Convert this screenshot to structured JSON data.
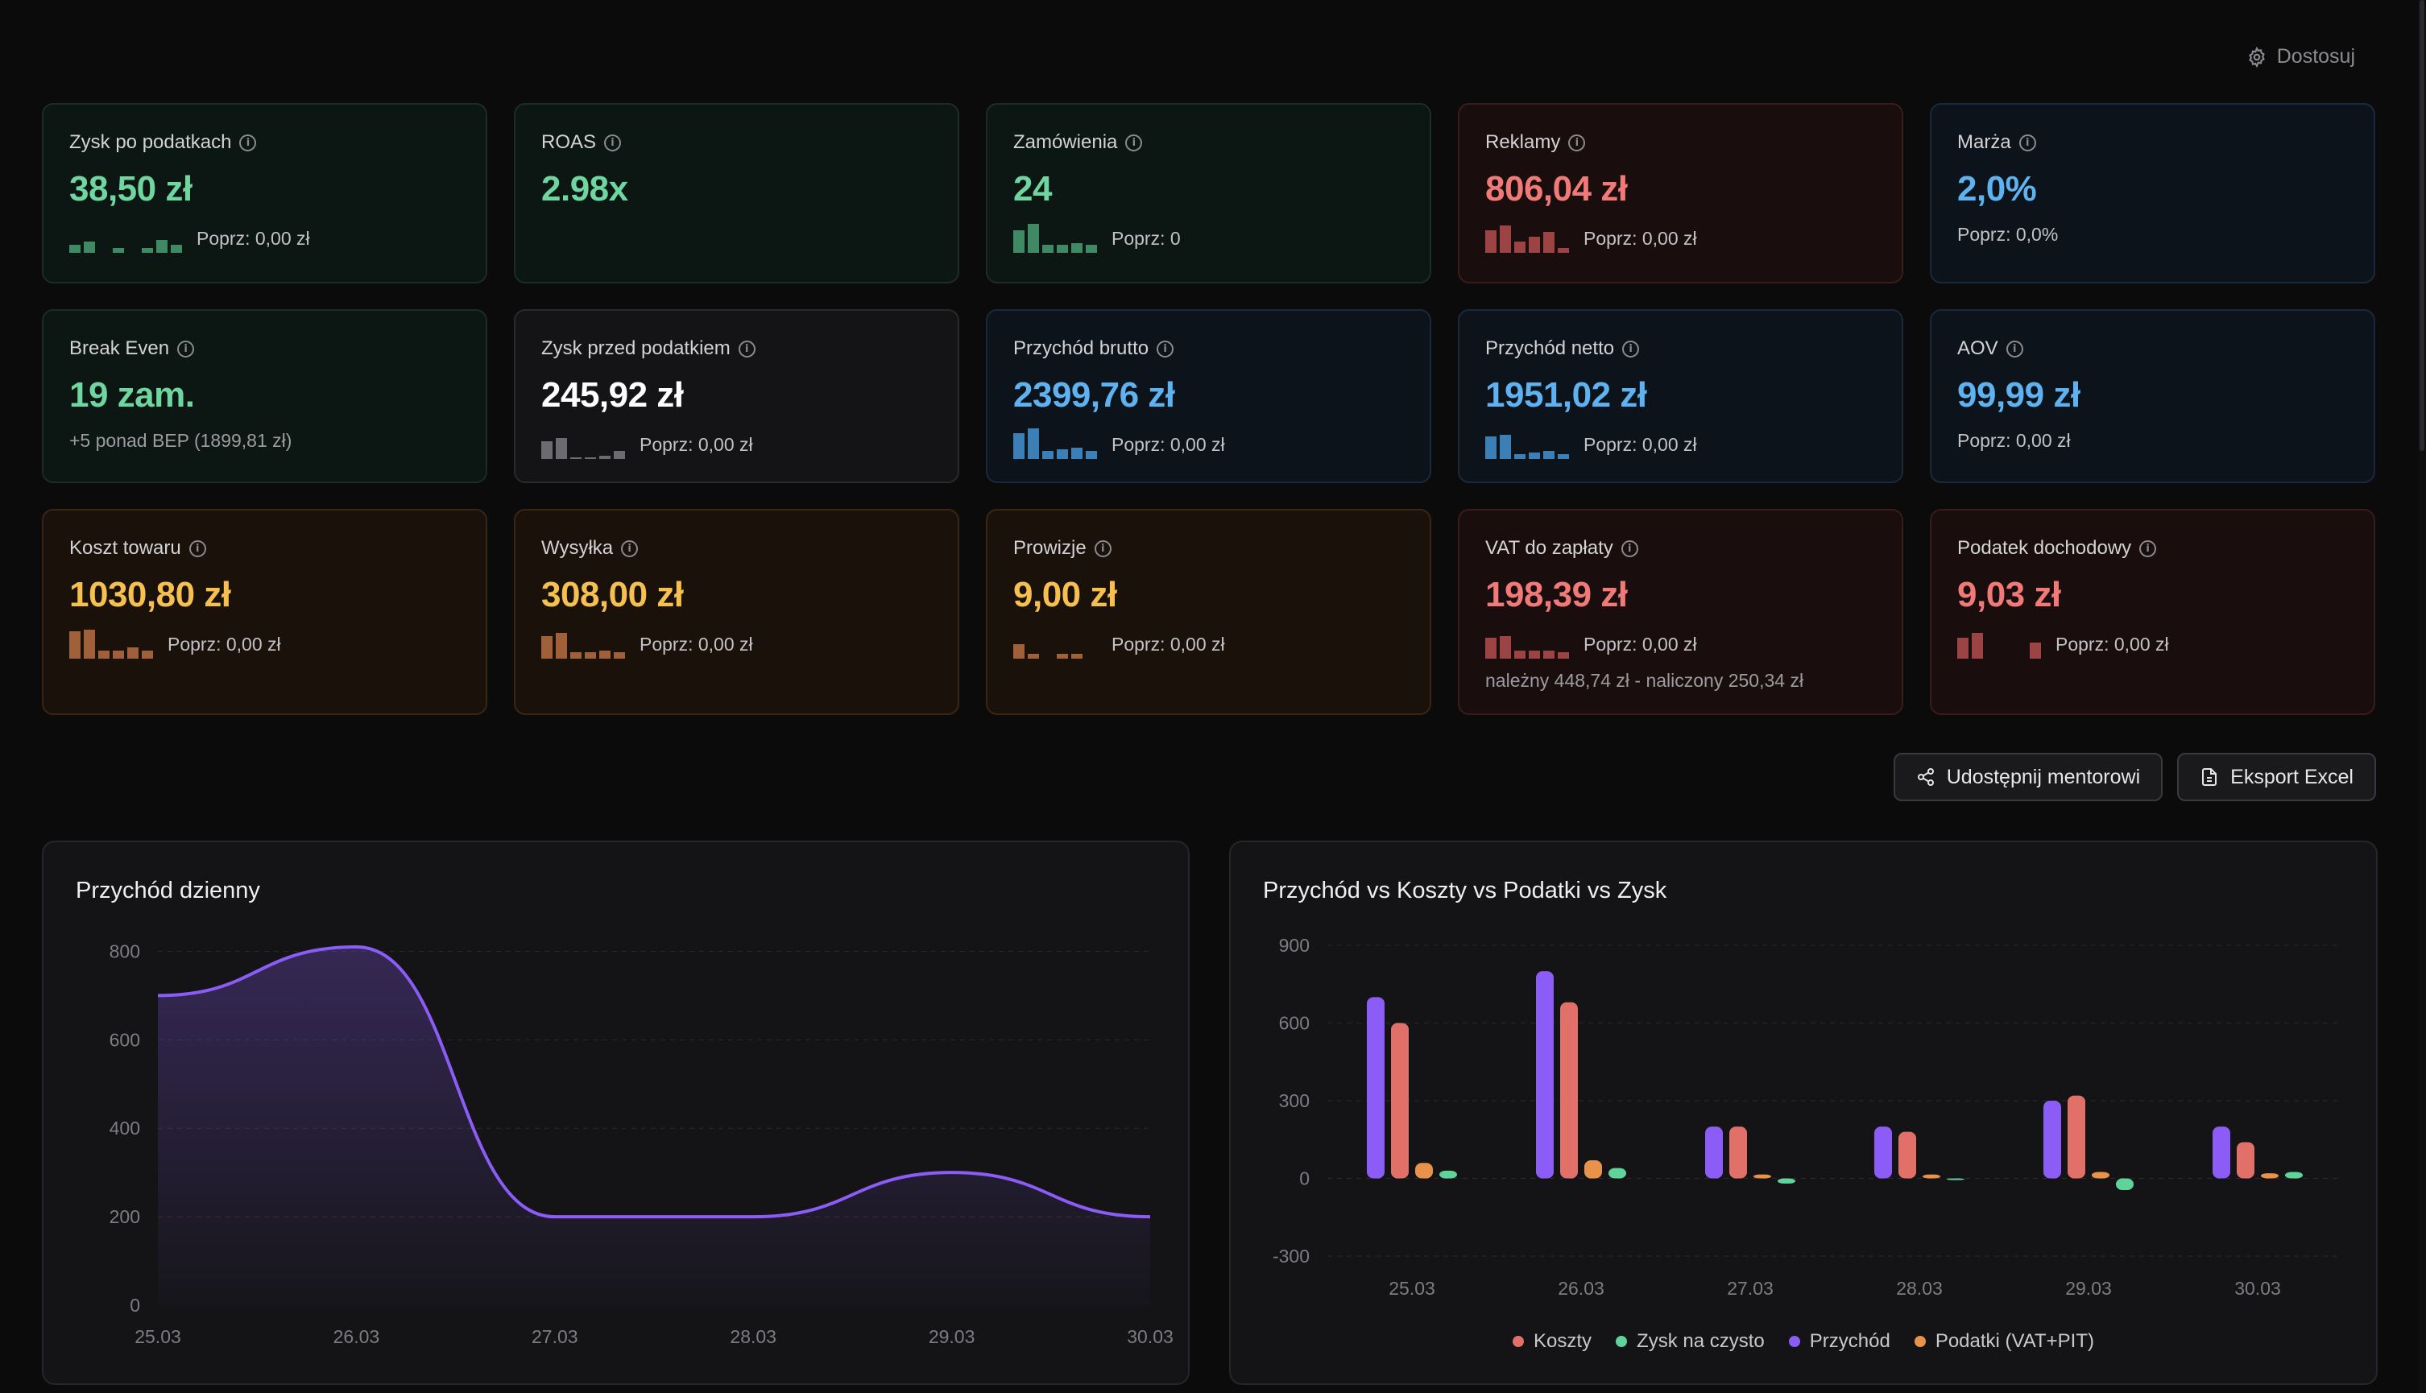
{
  "toolbar": {
    "customize_label": "Dostosuj"
  },
  "cards": [
    {
      "label": "Zysk po podatkach",
      "value": "38,50 zł",
      "prev": "Poprz: 0,00 zł",
      "tone": "green"
    },
    {
      "label": "ROAS",
      "value": "2.98x",
      "tone": "green"
    },
    {
      "label": "Zamówienia",
      "value": "24",
      "prev": "Poprz: 0",
      "tone": "green"
    },
    {
      "label": "Reklamy",
      "value": "806,04 zł",
      "prev": "Poprz: 0,00 zł",
      "tone": "red"
    },
    {
      "label": "Marża",
      "value": "2,0%",
      "prev": "Poprz: 0,0%",
      "tone": "blue"
    },
    {
      "label": "Break Even",
      "value": "19 zam.",
      "note": "+5 ponad BEP (1899,81 zł)",
      "tone": "green"
    },
    {
      "label": "Zysk przed podatkiem",
      "value": "245,92 zł",
      "prev": "Poprz: 0,00 zł",
      "tone": "neutral"
    },
    {
      "label": "Przychód brutto",
      "value": "2399,76 zł",
      "prev": "Poprz: 0,00 zł",
      "tone": "blue"
    },
    {
      "label": "Przychód netto",
      "value": "1951,02 zł",
      "prev": "Poprz: 0,00 zł",
      "tone": "blue"
    },
    {
      "label": "AOV",
      "value": "99,99 zł",
      "prev": "Poprz: 0,00 zł",
      "tone": "blue"
    },
    {
      "label": "Koszt towaru",
      "value": "1030,80 zł",
      "prev": "Poprz: 0,00 zł",
      "tone": "orange"
    },
    {
      "label": "Wysyłka",
      "value": "308,00 zł",
      "prev": "Poprz: 0,00 zł",
      "tone": "orange"
    },
    {
      "label": "Prowizje",
      "value": "9,00 zł",
      "prev": "Poprz: 0,00 zł",
      "tone": "orange"
    },
    {
      "label": "VAT do zapłaty",
      "value": "198,39 zł",
      "prev": "Poprz: 0,00 zł",
      "note": "należny 448,74 zł - naliczony 250,34 zł",
      "tone": "red"
    },
    {
      "label": "Podatek dochodowy",
      "value": "9,03 zł",
      "prev": "Poprz: 0,00 zł",
      "tone": "red"
    }
  ],
  "actions": {
    "share_label": "Udostępnij mentorowi",
    "export_label": "Eksport Excel"
  },
  "colors": {
    "accent_purple": "#8b5cf6",
    "koszty": "#e07068",
    "zysk": "#5fd39a",
    "przychod": "#8b5cf6",
    "podatki": "#e8924a"
  },
  "chart_data": [
    {
      "type": "area",
      "title": "Przychód dzienny",
      "categories": [
        "25.03",
        "26.03",
        "27.03",
        "28.03",
        "29.03",
        "30.03"
      ],
      "values": [
        700,
        810,
        200,
        200,
        300,
        200
      ],
      "yticks": [
        0,
        200,
        400,
        600,
        800
      ],
      "ylim": [
        0,
        810
      ],
      "grid": true
    },
    {
      "type": "bar",
      "title": "Przychód vs Koszty vs Podatki vs Zysk",
      "categories": [
        "25.03",
        "26.03",
        "27.03",
        "28.03",
        "29.03",
        "30.03"
      ],
      "series": [
        {
          "name": "Przychód",
          "values": [
            700,
            800,
            200,
            200,
            300,
            200
          ]
        },
        {
          "name": "Koszty",
          "values": [
            600,
            680,
            200,
            180,
            320,
            140
          ]
        },
        {
          "name": "Podatki (VAT+PIT)",
          "values": [
            60,
            70,
            15,
            15,
            25,
            20
          ]
        },
        {
          "name": "Zysk na czysto",
          "values": [
            30,
            40,
            -20,
            -5,
            -45,
            25
          ]
        }
      ],
      "legend": [
        "Koszty",
        "Zysk na czysto",
        "Przychód",
        "Podatki (VAT+PIT)"
      ],
      "yticks": [
        -300,
        0,
        300,
        600,
        900
      ],
      "ylim": [
        -300,
        900
      ],
      "grid": true,
      "legend_position": "bottom"
    }
  ]
}
